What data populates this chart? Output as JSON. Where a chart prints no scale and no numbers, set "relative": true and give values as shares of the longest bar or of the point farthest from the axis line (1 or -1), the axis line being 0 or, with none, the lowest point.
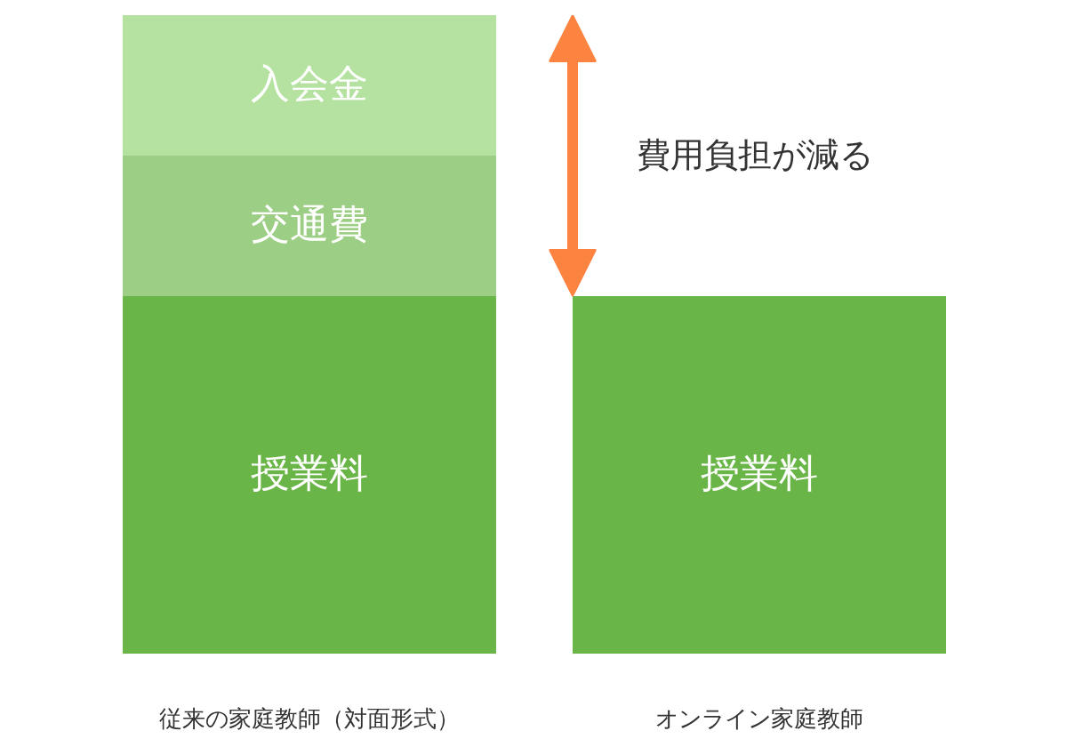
{
  "chart_data": {
    "type": "bar",
    "categories": [
      "従来の家庭教師（対面形式）",
      "オンライン家庭教師"
    ],
    "stacked": true,
    "relative": true,
    "series": [
      {
        "name": "授業料",
        "color": "#6ab548",
        "values": [
          0.56,
          0.56
        ]
      },
      {
        "name": "交通費",
        "color": "#9ccf85",
        "values": [
          0.22,
          null
        ]
      },
      {
        "name": "入会金",
        "color": "#b5e2a0",
        "values": [
          0.22,
          null
        ]
      }
    ],
    "annotations": [
      "費用負担が減る"
    ]
  }
}
